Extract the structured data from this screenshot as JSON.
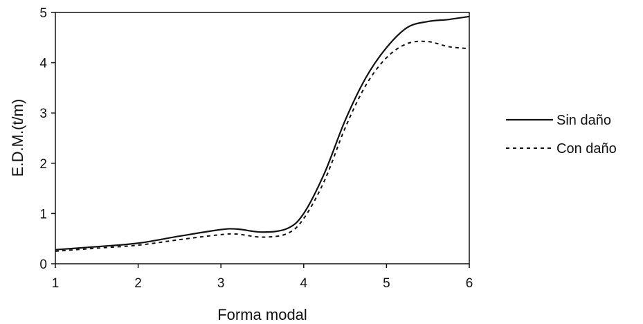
{
  "chart_data": {
    "type": "line",
    "title": "",
    "xlabel": "Forma modal",
    "ylabel": "E.D.M.(t/m)",
    "xlim": [
      1,
      6
    ],
    "ylim": [
      0,
      5
    ],
    "xticks": [
      1,
      2,
      3,
      4,
      5,
      6
    ],
    "yticks": [
      0,
      1,
      2,
      3,
      4,
      5
    ],
    "grid": false,
    "legend_position": "right",
    "series": [
      {
        "name": "Sin daño",
        "style": "solid",
        "color": "#111111",
        "x": [
          1.0,
          1.5,
          2.0,
          2.5,
          3.0,
          3.2,
          3.5,
          3.8,
          4.0,
          4.25,
          4.5,
          4.75,
          5.0,
          5.25,
          5.5,
          5.75,
          6.0
        ],
        "y": [
          0.28,
          0.34,
          0.41,
          0.55,
          0.68,
          0.69,
          0.63,
          0.7,
          1.0,
          1.8,
          2.85,
          3.7,
          4.3,
          4.7,
          4.82,
          4.86,
          4.92
        ]
      },
      {
        "name": "Con daño",
        "style": "dashed",
        "color": "#111111",
        "x": [
          1.0,
          1.5,
          2.0,
          2.5,
          3.0,
          3.2,
          3.5,
          3.8,
          4.0,
          4.25,
          4.5,
          4.75,
          5.0,
          5.25,
          5.5,
          5.75,
          6.0
        ],
        "y": [
          0.25,
          0.31,
          0.37,
          0.48,
          0.58,
          0.59,
          0.53,
          0.6,
          0.9,
          1.65,
          2.7,
          3.55,
          4.1,
          4.38,
          4.42,
          4.32,
          4.28
        ]
      }
    ]
  }
}
